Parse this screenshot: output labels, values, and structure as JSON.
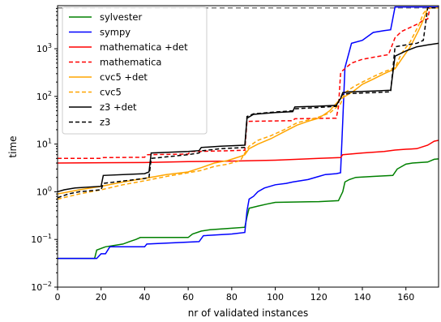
{
  "chart_data": {
    "type": "line",
    "title": "",
    "xlabel": "nr of validated instances",
    "ylabel": "time",
    "xlim": [
      0,
      175
    ],
    "ylim": [
      0.01,
      8000
    ],
    "yscale": "log",
    "grid": false,
    "legend_position": "top-left",
    "x_ticks": [
      0,
      20,
      40,
      60,
      80,
      100,
      120,
      140,
      160
    ],
    "x_tick_labels": [
      "0",
      "20",
      "40",
      "60",
      "80",
      "100",
      "120",
      "140",
      "160"
    ],
    "y_ticks": [
      0.01,
      0.1,
      1,
      10,
      100,
      1000
    ],
    "y_tick_bases": [
      "10",
      "10",
      "10",
      "10",
      "10",
      "10"
    ],
    "y_tick_exps": [
      "−2",
      "−1",
      "0",
      "1",
      "2",
      "3"
    ],
    "timeout_line": {
      "y": 7200,
      "color": "#7f7f7f"
    },
    "series": [
      {
        "name": "sylvester",
        "color": "#008000",
        "dash": "solid",
        "points": [
          [
            0,
            0.04
          ],
          [
            17,
            0.04
          ],
          [
            18,
            0.06
          ],
          [
            22,
            0.07
          ],
          [
            30,
            0.08
          ],
          [
            33,
            0.09
          ],
          [
            36,
            0.1
          ],
          [
            38,
            0.11
          ],
          [
            60,
            0.11
          ],
          [
            62,
            0.13
          ],
          [
            66,
            0.15
          ],
          [
            70,
            0.16
          ],
          [
            78,
            0.17
          ],
          [
            86,
            0.18
          ],
          [
            87,
            0.3
          ],
          [
            88,
            0.45
          ],
          [
            92,
            0.5
          ],
          [
            96,
            0.55
          ],
          [
            100,
            0.6
          ],
          [
            120,
            0.62
          ],
          [
            129,
            0.65
          ],
          [
            131,
            1.0
          ],
          [
            132,
            1.6
          ],
          [
            134,
            1.8
          ],
          [
            137,
            2.0
          ],
          [
            145,
            2.1
          ],
          [
            154,
            2.2
          ],
          [
            156,
            3.0
          ],
          [
            160,
            3.8
          ],
          [
            163,
            4.0
          ],
          [
            170,
            4.2
          ],
          [
            173,
            4.8
          ],
          [
            175,
            4.9
          ]
        ]
      },
      {
        "name": "sympy",
        "color": "#0000ff",
        "dash": "solid",
        "points": [
          [
            0,
            0.04
          ],
          [
            18,
            0.04
          ],
          [
            20,
            0.05
          ],
          [
            22,
            0.05
          ],
          [
            24,
            0.07
          ],
          [
            40,
            0.07
          ],
          [
            41,
            0.08
          ],
          [
            65,
            0.09
          ],
          [
            67,
            0.12
          ],
          [
            80,
            0.13
          ],
          [
            86,
            0.14
          ],
          [
            87,
            0.4
          ],
          [
            88,
            0.7
          ],
          [
            90,
            0.8
          ],
          [
            92,
            1.0
          ],
          [
            95,
            1.2
          ],
          [
            100,
            1.4
          ],
          [
            105,
            1.5
          ],
          [
            108,
            1.6
          ],
          [
            115,
            1.8
          ],
          [
            120,
            2.1
          ],
          [
            123,
            2.3
          ],
          [
            128,
            2.4
          ],
          [
            130,
            2.5
          ],
          [
            131,
            30
          ],
          [
            132,
            400
          ],
          [
            135,
            1300
          ],
          [
            140,
            1500
          ],
          [
            145,
            2200
          ],
          [
            150,
            2400
          ],
          [
            153,
            2500
          ],
          [
            155,
            7500
          ],
          [
            175,
            7500
          ]
        ]
      },
      {
        "name": "mathematica +det",
        "color": "#ff0000",
        "dash": "solid",
        "points": [
          [
            0,
            4.0
          ],
          [
            40,
            4.1
          ],
          [
            60,
            4.3
          ],
          [
            80,
            4.4
          ],
          [
            100,
            4.6
          ],
          [
            120,
            5.0
          ],
          [
            130,
            5.2
          ],
          [
            131,
            6.0
          ],
          [
            140,
            6.5
          ],
          [
            150,
            7.0
          ],
          [
            155,
            7.5
          ],
          [
            160,
            7.8
          ],
          [
            165,
            8.0
          ],
          [
            170,
            9.5
          ],
          [
            173,
            11.5
          ],
          [
            175,
            12
          ]
        ]
      },
      {
        "name": "mathematica",
        "color": "#ff0000",
        "dash": "dashed",
        "points": [
          [
            0,
            5.0
          ],
          [
            20,
            5.0
          ],
          [
            21,
            5.2
          ],
          [
            40,
            5.3
          ],
          [
            41,
            6.0
          ],
          [
            60,
            6.2
          ],
          [
            61,
            7.0
          ],
          [
            70,
            7.1
          ],
          [
            80,
            7.3
          ],
          [
            86,
            7.4
          ],
          [
            87,
            30
          ],
          [
            108,
            31
          ],
          [
            109,
            34
          ],
          [
            128,
            35
          ],
          [
            129,
            60
          ],
          [
            130,
            300
          ],
          [
            131,
            350
          ],
          [
            135,
            500
          ],
          [
            140,
            600
          ],
          [
            148,
            700
          ],
          [
            152,
            750
          ],
          [
            155,
            1700
          ],
          [
            158,
            2300
          ],
          [
            162,
            2800
          ],
          [
            166,
            3400
          ],
          [
            168,
            4000
          ],
          [
            170,
            4200
          ],
          [
            171,
            7200
          ],
          [
            175,
            7200
          ]
        ]
      },
      {
        "name": "cvc5 +det",
        "color": "#ffa500",
        "dash": "solid",
        "points": [
          [
            0,
            0.9
          ],
          [
            10,
            1.1
          ],
          [
            20,
            1.3
          ],
          [
            30,
            1.6
          ],
          [
            40,
            1.9
          ],
          [
            50,
            2.3
          ],
          [
            60,
            2.6
          ],
          [
            66,
            3.2
          ],
          [
            72,
            4.0
          ],
          [
            78,
            4.5
          ],
          [
            84,
            5.5
          ],
          [
            86,
            6.0
          ],
          [
            88,
            8.0
          ],
          [
            92,
            10
          ],
          [
            98,
            13
          ],
          [
            104,
            18
          ],
          [
            110,
            25
          ],
          [
            115,
            30
          ],
          [
            120,
            35
          ],
          [
            125,
            50
          ],
          [
            130,
            90
          ],
          [
            132,
            100
          ],
          [
            136,
            130
          ],
          [
            140,
            180
          ],
          [
            145,
            230
          ],
          [
            150,
            300
          ],
          [
            155,
            380
          ],
          [
            158,
            600
          ],
          [
            162,
            1100
          ],
          [
            166,
            2500
          ],
          [
            168,
            4000
          ],
          [
            170,
            7200
          ],
          [
            175,
            7200
          ]
        ]
      },
      {
        "name": "cvc5",
        "color": "#ffa500",
        "dash": "dashed",
        "points": [
          [
            0,
            0.7
          ],
          [
            10,
            0.9
          ],
          [
            20,
            1.1
          ],
          [
            30,
            1.4
          ],
          [
            40,
            1.7
          ],
          [
            50,
            2.1
          ],
          [
            60,
            2.5
          ],
          [
            66,
            2.8
          ],
          [
            72,
            3.4
          ],
          [
            78,
            3.8
          ],
          [
            84,
            4.5
          ],
          [
            86,
            6.5
          ],
          [
            88,
            9
          ],
          [
            92,
            12
          ],
          [
            98,
            15
          ],
          [
            104,
            20
          ],
          [
            110,
            28
          ],
          [
            115,
            32
          ],
          [
            120,
            37
          ],
          [
            125,
            45
          ],
          [
            130,
            70
          ],
          [
            132,
            120
          ],
          [
            136,
            160
          ],
          [
            140,
            200
          ],
          [
            145,
            260
          ],
          [
            150,
            330
          ],
          [
            155,
            400
          ],
          [
            158,
            800
          ],
          [
            162,
            1400
          ],
          [
            166,
            3200
          ],
          [
            168,
            5500
          ],
          [
            170,
            7200
          ],
          [
            175,
            7200
          ]
        ]
      },
      {
        "name": "z3 +det",
        "color": "#000000",
        "dash": "solid",
        "points": [
          [
            0,
            1.0
          ],
          [
            3,
            1.1
          ],
          [
            8,
            1.2
          ],
          [
            20,
            1.3
          ],
          [
            21,
            2.2
          ],
          [
            40,
            2.4
          ],
          [
            42,
            2.6
          ],
          [
            43,
            6.5
          ],
          [
            60,
            7.0
          ],
          [
            65,
            7.3
          ],
          [
            66,
            8.5
          ],
          [
            75,
            9.0
          ],
          [
            86,
            9.5
          ],
          [
            87,
            35
          ],
          [
            90,
            42
          ],
          [
            100,
            46
          ],
          [
            108,
            48
          ],
          [
            109,
            60
          ],
          [
            118,
            62
          ],
          [
            128,
            65
          ],
          [
            130,
            90
          ],
          [
            131,
            120
          ],
          [
            134,
            125
          ],
          [
            145,
            130
          ],
          [
            153,
            135
          ],
          [
            155,
            700
          ],
          [
            160,
            900
          ],
          [
            165,
            1100
          ],
          [
            170,
            1200
          ],
          [
            175,
            1300
          ]
        ]
      },
      {
        "name": "z3",
        "color": "#000000",
        "dash": "dashed",
        "points": [
          [
            0,
            0.75
          ],
          [
            5,
            0.9
          ],
          [
            10,
            1.0
          ],
          [
            20,
            1.1
          ],
          [
            21,
            1.5
          ],
          [
            40,
            1.9
          ],
          [
            42,
            2.0
          ],
          [
            43,
            5.0
          ],
          [
            60,
            6.0
          ],
          [
            65,
            6.5
          ],
          [
            66,
            7.2
          ],
          [
            75,
            8.0
          ],
          [
            86,
            8.5
          ],
          [
            87,
            38
          ],
          [
            90,
            43
          ],
          [
            100,
            47
          ],
          [
            108,
            50
          ],
          [
            109,
            55
          ],
          [
            118,
            58
          ],
          [
            128,
            62
          ],
          [
            130,
            95
          ],
          [
            131,
            110
          ],
          [
            134,
            115
          ],
          [
            145,
            120
          ],
          [
            153,
            125
          ],
          [
            155,
            1100
          ],
          [
            160,
            1200
          ],
          [
            165,
            1300
          ],
          [
            168,
            1500
          ],
          [
            170,
            7200
          ],
          [
            175,
            7200
          ]
        ]
      }
    ]
  }
}
